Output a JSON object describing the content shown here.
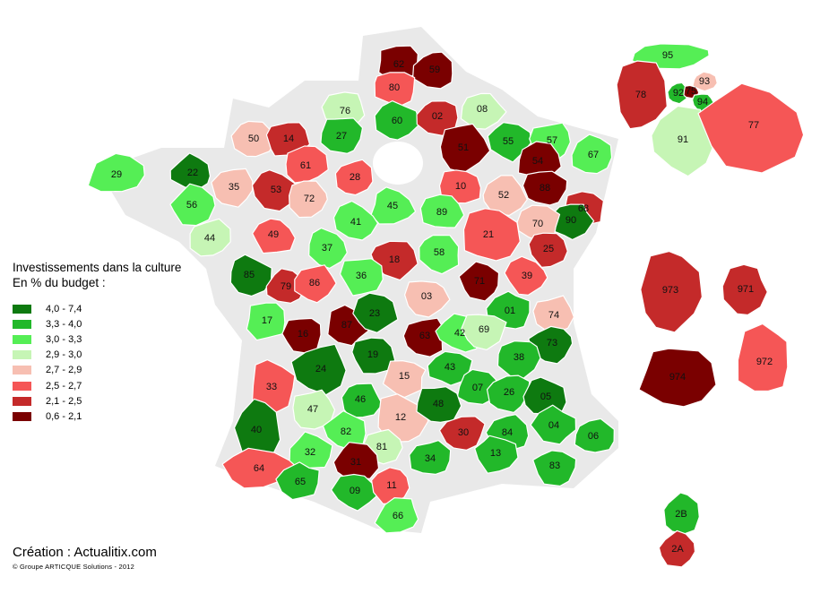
{
  "legend": {
    "title_line1": "Investissements dans la culture",
    "title_line2": "En % du budget :",
    "classes": [
      {
        "label": "4,0 - 7,4",
        "color": "#0e7a10"
      },
      {
        "label": "3,3 - 4,0",
        "color": "#22b82a"
      },
      {
        "label": "3,0 - 3,3",
        "color": "#55ee55"
      },
      {
        "label": "2,9 - 3,0",
        "color": "#c6f5b5"
      },
      {
        "label": "2,7 - 2,9",
        "color": "#f7bfb2"
      },
      {
        "label": "2,5 - 2,7",
        "color": "#f55656"
      },
      {
        "label": "2,1 - 2,5",
        "color": "#c42a2a"
      },
      {
        "label": "0,6 - 2,1",
        "color": "#7a0000"
      }
    ]
  },
  "credit": "Création : Actualitix.com",
  "copyright": "© Groupe ARTICQUE Solutions - 2012",
  "departments": [
    {
      "code": "62",
      "cls": 7
    },
    {
      "code": "59",
      "cls": 7
    },
    {
      "code": "80",
      "cls": 5
    },
    {
      "code": "76",
      "cls": 3
    },
    {
      "code": "60",
      "cls": 1
    },
    {
      "code": "02",
      "cls": 6
    },
    {
      "code": "08",
      "cls": 3
    },
    {
      "code": "51",
      "cls": 7
    },
    {
      "code": "55",
      "cls": 1
    },
    {
      "code": "57",
      "cls": 2
    },
    {
      "code": "54",
      "cls": 7
    },
    {
      "code": "67",
      "cls": 2
    },
    {
      "code": "88",
      "cls": 7
    },
    {
      "code": "68",
      "cls": 6
    },
    {
      "code": "90",
      "cls": 0
    },
    {
      "code": "50",
      "cls": 4
    },
    {
      "code": "14",
      "cls": 6
    },
    {
      "code": "27",
      "cls": 1
    },
    {
      "code": "61",
      "cls": 5
    },
    {
      "code": "28",
      "cls": 5
    },
    {
      "code": "29",
      "cls": 2
    },
    {
      "code": "22",
      "cls": 0
    },
    {
      "code": "35",
      "cls": 4
    },
    {
      "code": "56",
      "cls": 2
    },
    {
      "code": "53",
      "cls": 6
    },
    {
      "code": "72",
      "cls": 4
    },
    {
      "code": "10",
      "cls": 5
    },
    {
      "code": "52",
      "cls": 4
    },
    {
      "code": "89",
      "cls": 2
    },
    {
      "code": "45",
      "cls": 2
    },
    {
      "code": "41",
      "cls": 2
    },
    {
      "code": "21",
      "cls": 5
    },
    {
      "code": "70",
      "cls": 4
    },
    {
      "code": "25",
      "cls": 6
    },
    {
      "code": "44",
      "cls": 3
    },
    {
      "code": "49",
      "cls": 5
    },
    {
      "code": "37",
      "cls": 2
    },
    {
      "code": "18",
      "cls": 6
    },
    {
      "code": "58",
      "cls": 2
    },
    {
      "code": "39",
      "cls": 5
    },
    {
      "code": "85",
      "cls": 0
    },
    {
      "code": "79",
      "cls": 6
    },
    {
      "code": "86",
      "cls": 5
    },
    {
      "code": "36",
      "cls": 2
    },
    {
      "code": "71",
      "cls": 7
    },
    {
      "code": "03",
      "cls": 4
    },
    {
      "code": "01",
      "cls": 1
    },
    {
      "code": "74",
      "cls": 4
    },
    {
      "code": "17",
      "cls": 2
    },
    {
      "code": "16",
      "cls": 7
    },
    {
      "code": "87",
      "cls": 7
    },
    {
      "code": "23",
      "cls": 0
    },
    {
      "code": "63",
      "cls": 7
    },
    {
      "code": "42",
      "cls": 2
    },
    {
      "code": "69",
      "cls": 3
    },
    {
      "code": "73",
      "cls": 0
    },
    {
      "code": "38",
      "cls": 1
    },
    {
      "code": "24",
      "cls": 0
    },
    {
      "code": "19",
      "cls": 0
    },
    {
      "code": "15",
      "cls": 4
    },
    {
      "code": "43",
      "cls": 1
    },
    {
      "code": "07",
      "cls": 1
    },
    {
      "code": "26",
      "cls": 1
    },
    {
      "code": "05",
      "cls": 0
    },
    {
      "code": "33",
      "cls": 5
    },
    {
      "code": "47",
      "cls": 3
    },
    {
      "code": "46",
      "cls": 1
    },
    {
      "code": "12",
      "cls": 4
    },
    {
      "code": "48",
      "cls": 0
    },
    {
      "code": "30",
      "cls": 6
    },
    {
      "code": "84",
      "cls": 1
    },
    {
      "code": "04",
      "cls": 1
    },
    {
      "code": "06",
      "cls": 1
    },
    {
      "code": "40",
      "cls": 0
    },
    {
      "code": "82",
      "cls": 2
    },
    {
      "code": "81",
      "cls": 3
    },
    {
      "code": "34",
      "cls": 1
    },
    {
      "code": "13",
      "cls": 1
    },
    {
      "code": "83",
      "cls": 1
    },
    {
      "code": "64",
      "cls": 5
    },
    {
      "code": "32",
      "cls": 2
    },
    {
      "code": "31",
      "cls": 7
    },
    {
      "code": "65",
      "cls": 1
    },
    {
      "code": "09",
      "cls": 1
    },
    {
      "code": "11",
      "cls": 5
    },
    {
      "code": "66",
      "cls": 2
    },
    {
      "code": "2B",
      "cls": 1
    },
    {
      "code": "2A",
      "cls": 6
    },
    {
      "code": "95",
      "cls": 2
    },
    {
      "code": "78",
      "cls": 6
    },
    {
      "code": "93",
      "cls": 4
    },
    {
      "code": "92",
      "cls": 1
    },
    {
      "code": "75",
      "cls": 7
    },
    {
      "code": "94",
      "cls": 1
    },
    {
      "code": "91",
      "cls": 3
    },
    {
      "code": "77",
      "cls": 5
    },
    {
      "code": "973",
      "cls": 6
    },
    {
      "code": "971",
      "cls": 6
    },
    {
      "code": "974",
      "cls": 7
    },
    {
      "code": "972",
      "cls": 5
    }
  ]
}
